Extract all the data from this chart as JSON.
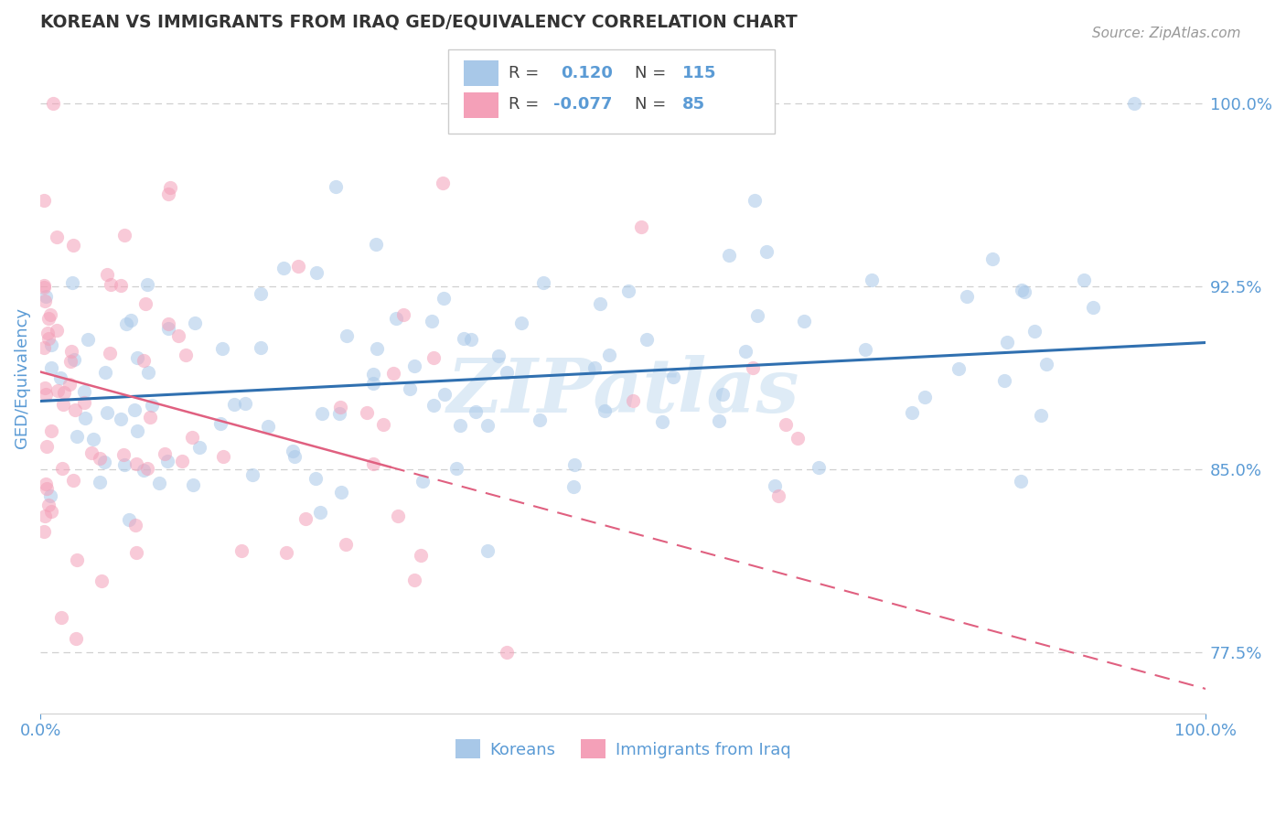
{
  "title": "KOREAN VS IMMIGRANTS FROM IRAQ GED/EQUIVALENCY CORRELATION CHART",
  "source": "Source: ZipAtlas.com",
  "ylabel": "GED/Equivalency",
  "ylim": [
    75.0,
    102.5
  ],
  "xlim": [
    0.0,
    100.0
  ],
  "ytick_positions": [
    77.5,
    85.0,
    92.5,
    100.0
  ],
  "ytick_labels": [
    "77.5%",
    "85.0%",
    "92.5%",
    "100.0%"
  ],
  "xtick_positions": [
    0,
    100
  ],
  "xtick_labels": [
    "0.0%",
    "100.0%"
  ],
  "korean_color": "#a8c8e8",
  "iraq_color": "#f4a0b8",
  "trend_korean_color": "#3070b0",
  "trend_iraq_color": "#e06080",
  "watermark": "ZIPatlas",
  "legend_r_korean": "0.120",
  "legend_n_korean": "115",
  "legend_r_iraq": "-0.077",
  "legend_n_iraq": "85",
  "legend_label_korean": "Koreans",
  "legend_label_iraq": "Immigrants from Iraq",
  "background_color": "#ffffff",
  "grid_color": "#d0d0d0",
  "title_color": "#333333",
  "axis_label_color": "#5b9bd5",
  "source_color": "#999999",
  "watermark_color": "#c8dff0",
  "legend_box_color": "#e8e8e8",
  "dot_size": 120,
  "dot_alpha": 0.55
}
